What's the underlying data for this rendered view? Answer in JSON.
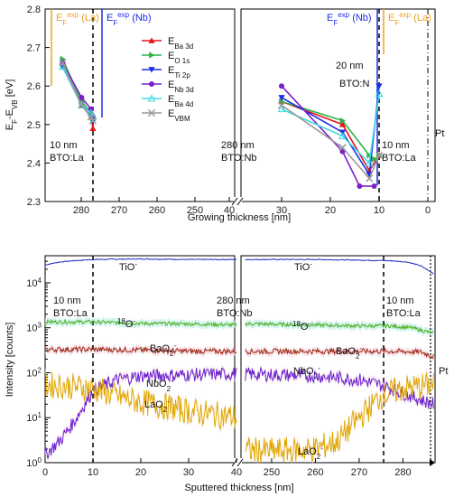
{
  "chart_data": [
    {
      "type": "line",
      "ylabel": "E_F-E_VB [eV]",
      "xlabel": "Growing thickness [nm]",
      "ylim": [
        2.3,
        2.8
      ],
      "x_ticks_left": [
        "280",
        "270",
        "260",
        "250",
        "40"
      ],
      "x_ticks_right": [
        "30",
        "20",
        "10",
        "0"
      ],
      "y_ticks": [
        "2.3",
        "2.4",
        "2.5",
        "2.6",
        "2.7",
        "2.8"
      ],
      "legend_placement": "top-center",
      "legend": [
        {
          "label": "E",
          "sub": "Ba 3d",
          "color": "#e8141b",
          "marker": "triangle-up"
        },
        {
          "label": "E",
          "sub": "O 1s",
          "color": "#2fb34a",
          "marker": "triangle-right"
        },
        {
          "label": "E",
          "sub": "Ti 2p",
          "color": "#1a2ee6",
          "marker": "triangle-down"
        },
        {
          "label": "E",
          "sub": "Nb 3d",
          "color": "#7b1fc9",
          "marker": "circle"
        },
        {
          "label": "E",
          "sub": "Ba 4d",
          "color": "#3fd8e0",
          "marker": "triangle-up-open"
        },
        {
          "label": "E",
          "sub": "VBM",
          "color": "#999999",
          "marker": "x"
        }
      ],
      "annotations": {
        "ef_la_left": {
          "base": "E",
          "sub": "F",
          "sup": "exp",
          "tail": "(La)"
        },
        "ef_nb_left": {
          "base": "E",
          "sub": "F",
          "sup": "exp",
          "tail": "(Nb)"
        },
        "ef_nb_right": {
          "base": "E",
          "sub": "F",
          "sup": "exp",
          "tail": "(Nb)"
        },
        "ef_la_right": {
          "base": "E",
          "sub": "F",
          "sup": "exp",
          "tail": "(La)"
        },
        "bto_n_1": "20 nm",
        "bto_n_2": "BTO:N",
        "la_left_1": "10 nm",
        "la_left_2": "BTO:La",
        "nb_mid_1": "280 nm",
        "nb_mid_2": "BTO:Nb",
        "la_right_1": "10 nm",
        "la_right_2": "BTO:La",
        "pt": "Pt"
      },
      "series_left": [
        {
          "name": "Ba 3d",
          "x": [
            285,
            280,
            277.5,
            277
          ],
          "y": [
            2.66,
            2.55,
            2.52,
            2.49
          ]
        },
        {
          "name": "O 1s",
          "x": [
            285,
            280,
            277.5,
            277
          ],
          "y": [
            2.67,
            2.56,
            2.53,
            2.51
          ]
        },
        {
          "name": "Ti 2p",
          "x": [
            285,
            280,
            277.5,
            277
          ],
          "y": [
            2.65,
            2.55,
            2.52,
            2.51
          ]
        },
        {
          "name": "Nb 3d",
          "x": [
            285,
            280,
            277.5,
            277
          ],
          "y": [
            2.66,
            2.57,
            2.54,
            2.52
          ]
        },
        {
          "name": "Ba 4d",
          "x": [
            285,
            280,
            277.5,
            277
          ],
          "y": [
            2.65,
            2.55,
            2.53,
            2.52
          ]
        },
        {
          "name": "VBM",
          "x": [
            285,
            280,
            277.5,
            277
          ],
          "y": [
            2.66,
            2.55,
            2.52,
            2.51
          ]
        }
      ],
      "series_right": [
        {
          "name": "Ba 3d",
          "x": [
            30,
            17.5,
            12,
            10
          ],
          "y": [
            2.56,
            2.5,
            2.38,
            2.42
          ]
        },
        {
          "name": "O 1s",
          "x": [
            30,
            17.5,
            12,
            11,
            10
          ],
          "y": [
            2.56,
            2.51,
            2.42,
            2.41,
            2.42
          ]
        },
        {
          "name": "Ti 2p",
          "x": [
            30,
            17.5,
            12,
            10
          ],
          "y": [
            2.57,
            2.48,
            2.37,
            2.6
          ]
        },
        {
          "name": "Nb 3d",
          "x": [
            30,
            17.5,
            14,
            11
          ],
          "y": [
            2.6,
            2.43,
            2.34,
            2.34
          ]
        },
        {
          "name": "Ba 4d",
          "x": [
            30,
            17.5,
            12,
            10
          ],
          "y": [
            2.54,
            2.47,
            2.4,
            2.58
          ]
        },
        {
          "name": "VBM",
          "x": [
            30,
            17.5,
            12,
            10
          ],
          "y": [
            2.55,
            2.44,
            2.36,
            2.42
          ]
        }
      ]
    },
    {
      "type": "line",
      "ylabel": "Intensity [counts]",
      "xlabel": "Sputtered thickness [nm]",
      "yscale": "log",
      "ylim": [
        1,
        40000
      ],
      "x_ticks_left": [
        "0",
        "10",
        "20",
        "30",
        "40"
      ],
      "x_ticks_right": [
        "250",
        "260",
        "270",
        "280"
      ],
      "y_ticks": [
        "10^0",
        "10^1",
        "10^2",
        "10^3",
        "10^4"
      ],
      "annotations": {
        "la_left_1": "10 nm",
        "la_left_2": "BTO:La",
        "nb_mid_1": "280 nm",
        "nb_mid_2": "BTO:Nb",
        "la_right_1": "10 nm",
        "la_right_2": "BTO:La",
        "pt": "Pt"
      },
      "series": [
        {
          "name": "TiO⁻",
          "label_left": "TiO",
          "color": "#1c2ec4",
          "left": [
            [
              0,
              25000
            ],
            [
              3,
              29000
            ],
            [
              6,
              31000
            ],
            [
              10,
              33000
            ],
            [
              20,
              34000
            ],
            [
              30,
              33000
            ],
            [
              40,
              33000
            ]
          ],
          "right": [
            [
              240,
              33000
            ],
            [
              250,
              33000
            ],
            [
              260,
              33000
            ],
            [
              270,
              32000
            ],
            [
              277,
              31000
            ],
            [
              281,
              29000
            ],
            [
              284,
              24000
            ],
            [
              287,
              16000
            ]
          ]
        },
        {
          "name": "18O⁻",
          "label_left": "O",
          "color": "#4caf1c",
          "left": [
            [
              0,
              1350
            ],
            [
              10,
              1350
            ],
            [
              20,
              1250
            ],
            [
              30,
              1220
            ],
            [
              40,
              1150
            ]
          ],
          "right": [
            [
              240,
              1250
            ],
            [
              250,
              1200
            ],
            [
              260,
              1150
            ],
            [
              270,
              1100
            ],
            [
              277,
              1100
            ],
            [
              282,
              1000
            ],
            [
              287,
              750
            ]
          ]
        },
        {
          "name": "BaO2⁻",
          "label_left": "BaO",
          "color": "#a02a17",
          "left": [
            [
              0,
              330
            ],
            [
              10,
              330
            ],
            [
              20,
              320
            ],
            [
              30,
              300
            ],
            [
              40,
              300
            ]
          ],
          "right": [
            [
              240,
              300
            ],
            [
              250,
              300
            ],
            [
              260,
              300
            ],
            [
              270,
              300
            ],
            [
              277,
              300
            ],
            [
              284,
              290
            ],
            [
              287,
              230
            ]
          ]
        },
        {
          "name": "NbO2⁻",
          "label_left": "NbO",
          "color": "#6a1fd0",
          "left": [
            [
              0,
              1.5
            ],
            [
              3,
              3
            ],
            [
              6,
              8
            ],
            [
              10,
              40
            ],
            [
              15,
              70
            ],
            [
              20,
              85
            ],
            [
              30,
              90
            ],
            [
              40,
              95
            ]
          ],
          "right": [
            [
              240,
              95
            ],
            [
              250,
              90
            ],
            [
              260,
              85
            ],
            [
              270,
              70
            ],
            [
              276,
              50
            ],
            [
              280,
              35
            ],
            [
              284,
              25
            ],
            [
              287,
              20
            ]
          ]
        },
        {
          "name": "LaO2⁻",
          "label_left": "LaO",
          "color": "#e0a700",
          "left": [
            [
              0,
              55
            ],
            [
              5,
              50
            ],
            [
              10,
              45
            ],
            [
              15,
              30
            ],
            [
              20,
              22
            ],
            [
              25,
              18
            ],
            [
              30,
              14
            ],
            [
              35,
              12
            ],
            [
              40,
              10
            ]
          ],
          "right": [
            [
              240,
              2
            ],
            [
              250,
              1.8
            ],
            [
              260,
              2
            ],
            [
              265,
              3
            ],
            [
              270,
              10
            ],
            [
              275,
              30
            ],
            [
              280,
              45
            ],
            [
              284,
              50
            ],
            [
              287,
              55
            ]
          ]
        }
      ]
    }
  ]
}
